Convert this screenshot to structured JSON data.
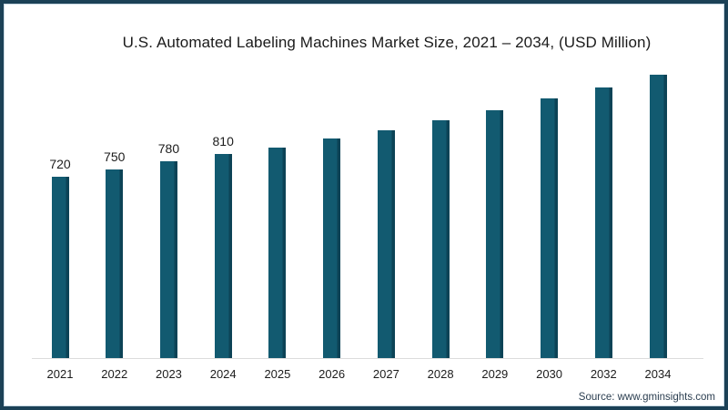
{
  "chart_data": {
    "type": "bar",
    "title": "U.S. Automated Labeling Machines Market Size, 2021 – 2034, (USD Million)",
    "categories": [
      "2021",
      "2022",
      "2023",
      "2024",
      "2025",
      "2026",
      "2027",
      "2028",
      "2029",
      "2030",
      "2032",
      "2034"
    ],
    "values": [
      720,
      750,
      780,
      810,
      835,
      870,
      905,
      945,
      985,
      1030,
      1075,
      1125
    ],
    "data_labels": [
      "720",
      "750",
      "780",
      "810",
      "",
      "",
      "",
      "",
      "",
      "",
      "",
      ""
    ],
    "xlabel": "",
    "ylabel": "",
    "ylim": [
      0,
      1150
    ],
    "grid": false,
    "legend": false,
    "bar_color": "#125a70",
    "bar_edge_color": "#0c4356",
    "axis_line_color": "#dcdcdc",
    "label_color": "#1c1c1c"
  },
  "source": {
    "text": "Source: www.gminsights.com"
  },
  "frame": {
    "border_color": "#1c4156"
  }
}
